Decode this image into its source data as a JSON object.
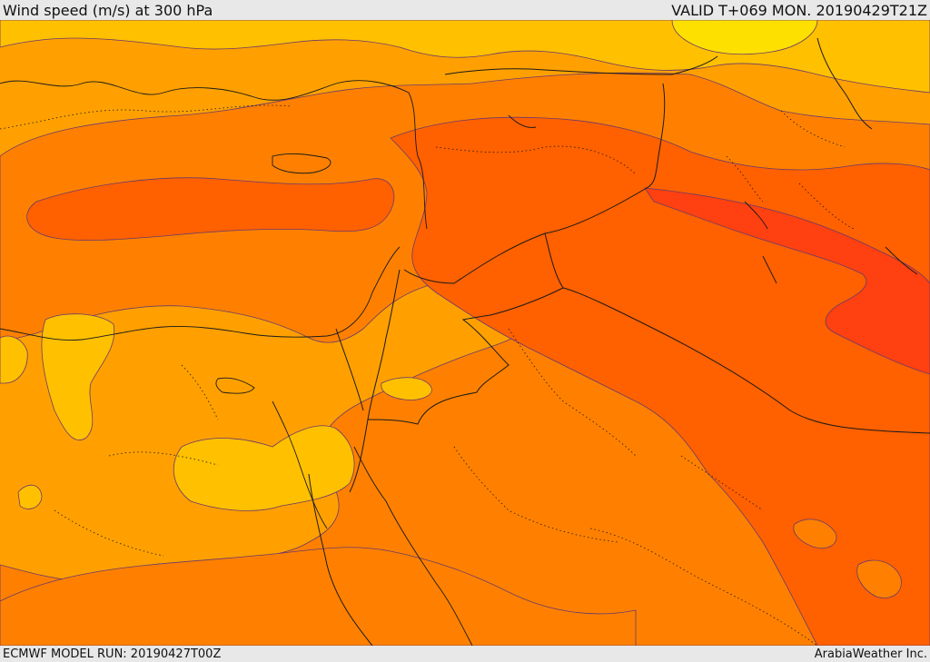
{
  "header": {
    "title": "Wind speed (m/s) at 300 hPa",
    "valid": "VALID T+069 MON. 20190429T21Z"
  },
  "footer": {
    "model_run": "ECMWF MODEL RUN: 20190427T00Z",
    "credit": "ArabiaWeather Inc."
  },
  "colors": {
    "band_10_20": "#fde000",
    "band_20_30": "#ffc000",
    "band_30_40": "#ffa000",
    "band_40_50": "#ff8000",
    "band_50_60": "#ff6000",
    "band_60_70": "#ff4010",
    "contour_line": "#6a3a6a",
    "border_line": "#1a1a1a"
  }
}
